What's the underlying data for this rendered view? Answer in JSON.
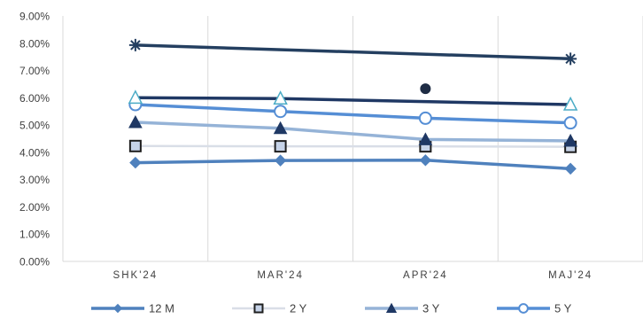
{
  "chart_data": {
    "type": "line",
    "categories": [
      "SHK'24",
      "MAR'24",
      "APR'24",
      "MAJ'24"
    ],
    "ylim": [
      0,
      9
    ],
    "yticks": [
      "0.00%",
      "1.00%",
      "2.00%",
      "3.00%",
      "4.00%",
      "5.00%",
      "6.00%",
      "7.00%",
      "8.00%",
      "9.00%",
      "9.00%"
    ],
    "grid": "vertical",
    "legend_position": "bottom",
    "series": [
      {
        "name": "12 M",
        "values": [
          3.62,
          3.7,
          3.71,
          3.4
        ],
        "color": "#4f81bd",
        "marker": "diamond",
        "legend": true
      },
      {
        "name": "2 Y",
        "values": [
          4.23,
          4.22,
          4.22,
          4.2
        ],
        "color": "#d9dee7",
        "marker": "square",
        "legend": true
      },
      {
        "name": "3 Y",
        "values": [
          5.1,
          4.88,
          4.47,
          4.42
        ],
        "color": "#95b3d7",
        "marker": "triangle-filled",
        "legend": true
      },
      {
        "name": "5 Y",
        "values": [
          5.75,
          5.5,
          5.25,
          5.08
        ],
        "color": "#558ed5",
        "marker": "circle-open",
        "legend": true
      },
      {
        "name": "",
        "values": [
          6.0,
          5.97,
          null,
          5.75
        ],
        "color": "#1f3864",
        "marker": "triangle-open",
        "legend": false
      },
      {
        "name": "",
        "values": [
          7.93,
          null,
          null,
          7.43
        ],
        "color": "#243f60",
        "marker": "star",
        "legend": false
      },
      {
        "name": "",
        "values": [
          null,
          null,
          6.33,
          null
        ],
        "color": "#1f2d45",
        "marker": "dot",
        "legend": false
      }
    ]
  }
}
